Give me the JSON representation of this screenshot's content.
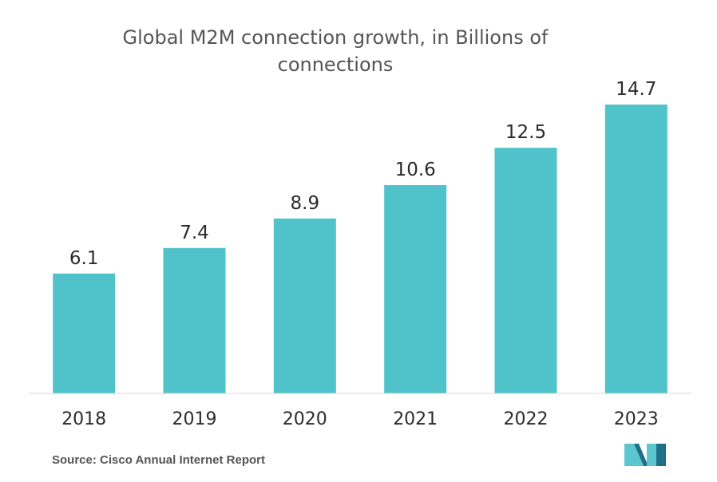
{
  "chart_data": {
    "type": "bar",
    "title": "Global M2M connection growth, in Billions of connections",
    "categories": [
      "2018",
      "2019",
      "2020",
      "2021",
      "2022",
      "2023"
    ],
    "values": [
      6.1,
      7.4,
      8.9,
      10.6,
      12.5,
      14.7
    ],
    "value_labels": [
      "6.1",
      "7.4",
      "8.9",
      "10.6",
      "12.5",
      "14.7"
    ],
    "xlabel": "",
    "ylabel": "",
    "ylim": [
      0,
      14.7
    ],
    "grid": false,
    "legend": "none",
    "bar_color": "#4fc3c9",
    "axis_color": "#d9d9d9"
  },
  "source": "Source: Cisco Annual Internet Report",
  "logo": {
    "icon": "mordor-intelligence-logo-icon",
    "color_dark": "#1f6f86",
    "color_light": "#5cc6cf"
  }
}
